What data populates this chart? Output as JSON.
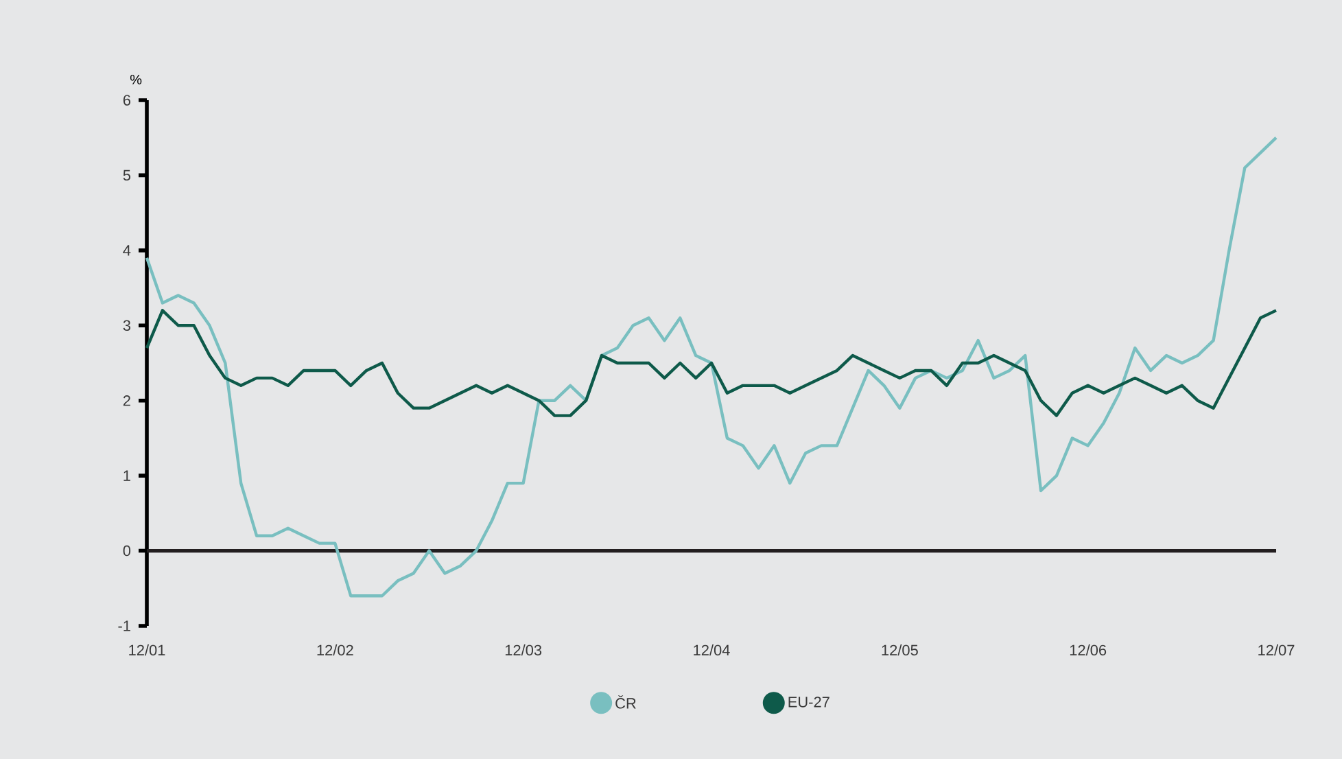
{
  "chart_data": {
    "type": "line",
    "ylabel": "%",
    "x": [
      "2001-12",
      "2002-01",
      "2002-02",
      "2002-03",
      "2002-04",
      "2002-05",
      "2002-06",
      "2002-07",
      "2002-08",
      "2002-09",
      "2002-10",
      "2002-11",
      "2002-12",
      "2003-01",
      "2003-02",
      "2003-03",
      "2003-04",
      "2003-05",
      "2003-06",
      "2003-07",
      "2003-08",
      "2003-09",
      "2003-10",
      "2003-11",
      "2003-12",
      "2004-01",
      "2004-02",
      "2004-03",
      "2004-04",
      "2004-05",
      "2004-06",
      "2004-07",
      "2004-08",
      "2004-09",
      "2004-10",
      "2004-11",
      "2004-12",
      "2005-01",
      "2005-02",
      "2005-03",
      "2005-04",
      "2005-05",
      "2005-06",
      "2005-07",
      "2005-08",
      "2005-09",
      "2005-10",
      "2005-11",
      "2005-12",
      "2006-01",
      "2006-02",
      "2006-03",
      "2006-04",
      "2006-05",
      "2006-06",
      "2006-07",
      "2006-08",
      "2006-09",
      "2006-10",
      "2006-11",
      "2006-12",
      "2007-01",
      "2007-02",
      "2007-03",
      "2007-04",
      "2007-05",
      "2007-06",
      "2007-07",
      "2007-08",
      "2007-09",
      "2007-10",
      "2007-11",
      "2007-12"
    ],
    "series": [
      {
        "name": "ČR",
        "color": "#79bfc0",
        "values": [
          3.9,
          3.3,
          3.4,
          3.3,
          3.0,
          2.5,
          0.9,
          0.2,
          0.2,
          0.3,
          0.2,
          0.1,
          0.1,
          -0.6,
          -0.6,
          -0.6,
          -0.4,
          -0.3,
          0.0,
          -0.3,
          -0.2,
          0.0,
          0.4,
          0.9,
          0.9,
          2.0,
          2.0,
          2.2,
          2.0,
          2.6,
          2.7,
          3.0,
          3.1,
          2.8,
          3.1,
          2.6,
          2.5,
          1.5,
          1.4,
          1.1,
          1.4,
          0.9,
          1.3,
          1.4,
          1.4,
          1.9,
          2.4,
          2.2,
          1.9,
          2.3,
          2.4,
          2.3,
          2.4,
          2.8,
          2.3,
          2.4,
          2.6,
          0.8,
          1.0,
          1.5,
          1.4,
          1.7,
          2.1,
          2.7,
          2.4,
          2.6,
          2.5,
          2.6,
          2.8,
          4.0,
          5.1,
          5.3,
          5.5
        ]
      },
      {
        "name": "EU-27",
        "color": "#0e5a4a",
        "values": [
          2.7,
          3.2,
          3.0,
          3.0,
          2.6,
          2.3,
          2.2,
          2.3,
          2.3,
          2.2,
          2.4,
          2.4,
          2.4,
          2.2,
          2.4,
          2.5,
          2.1,
          1.9,
          1.9,
          2.0,
          2.1,
          2.2,
          2.1,
          2.2,
          2.1,
          2.0,
          1.8,
          1.8,
          2.0,
          2.6,
          2.5,
          2.5,
          2.5,
          2.3,
          2.5,
          2.3,
          2.5,
          2.1,
          2.2,
          2.2,
          2.2,
          2.1,
          2.2,
          2.3,
          2.4,
          2.6,
          2.5,
          2.4,
          2.3,
          2.4,
          2.4,
          2.2,
          2.5,
          2.5,
          2.6,
          2.5,
          2.4,
          2.0,
          1.8,
          2.1,
          2.2,
          2.1,
          2.2,
          2.3,
          2.2,
          2.1,
          2.2,
          2.0,
          1.9,
          2.3,
          2.7,
          3.1,
          3.2
        ]
      }
    ],
    "xlim": [
      "2001-12",
      "2007-12"
    ],
    "xticks": [
      {
        "value": "2001-12",
        "label": "12/01"
      },
      {
        "value": "2002-12",
        "label": "12/02"
      },
      {
        "value": "2003-12",
        "label": "12/03"
      },
      {
        "value": "2004-12",
        "label": "12/04"
      },
      {
        "value": "2005-12",
        "label": "12/05"
      },
      {
        "value": "2006-12",
        "label": "12/06"
      },
      {
        "value": "2007-12",
        "label": "12/07"
      }
    ],
    "ylim": [
      -1,
      6
    ],
    "yticks": [
      -1,
      0,
      1,
      2,
      3,
      4,
      5,
      6
    ],
    "ref_lines": [
      {
        "axis": "y",
        "value": 0,
        "color": "#231f20"
      }
    ],
    "grid": false,
    "legend": "bottom",
    "line_style": "solid"
  }
}
